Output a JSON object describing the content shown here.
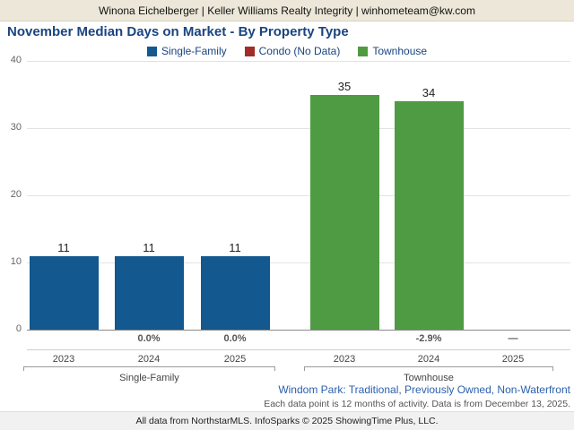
{
  "header": {
    "contact_bar": "Winona Eichelberger | Keller Williams Realty Integrity | winhometeam@kw.com",
    "title": "November Median Days on Market - By Property Type"
  },
  "legend": [
    {
      "label": "Single-Family",
      "color": "#13588e"
    },
    {
      "label": "Condo (No Data)",
      "color": "#a22c29"
    },
    {
      "label": "Townhouse",
      "color": "#4f9b43"
    }
  ],
  "chart_data": {
    "type": "bar",
    "title": "November Median Days on Market - By Property Type",
    "ylabel": "",
    "xlabel": "",
    "ylim": [
      0,
      40
    ],
    "yticks": [
      0,
      10,
      20,
      30,
      40
    ],
    "grid": true,
    "legend_position": "top",
    "groups": [
      {
        "name": "Single-Family",
        "color": "#13588e",
        "bars": [
          {
            "year": "2023",
            "value": 11,
            "label": "11",
            "pct": ""
          },
          {
            "year": "2024",
            "value": 11,
            "label": "11",
            "pct": "0.0%"
          },
          {
            "year": "2025",
            "value": 11,
            "label": "11",
            "pct": "0.0%"
          }
        ]
      },
      {
        "name": "Townhouse",
        "color": "#4f9b43",
        "bars": [
          {
            "year": "2023",
            "value": 35,
            "label": "35",
            "pct": ""
          },
          {
            "year": "2024",
            "value": 34,
            "label": "34",
            "pct": "-2.9%"
          },
          {
            "year": "2025",
            "value": null,
            "label": "",
            "pct": "—"
          }
        ]
      }
    ]
  },
  "footer": {
    "filter_note": "Windom Park: Traditional, Previously Owned, Non-Waterfront",
    "data_note": "Each data point is 12 months of activity. Data is from December 13, 2025.",
    "attribution": "All data from NorthstarMLS. InfoSparks © 2025 ShowingTime Plus, LLC."
  }
}
